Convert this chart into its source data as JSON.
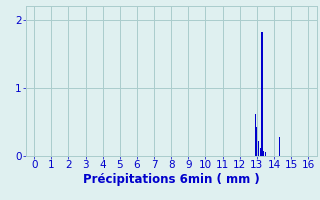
{
  "xlabel": "Précipitations 6min ( mm )",
  "xlim": [
    -0.5,
    16.5
  ],
  "ylim": [
    0,
    2.2
  ],
  "yticks": [
    0,
    1,
    2
  ],
  "xticks": [
    0,
    1,
    2,
    3,
    4,
    5,
    6,
    7,
    8,
    9,
    10,
    11,
    12,
    13,
    14,
    15,
    16
  ],
  "bar_positions": [
    12.9,
    13.0,
    13.1,
    13.2,
    13.3,
    13.4,
    13.5,
    14.3
  ],
  "bar_heights": [
    0.62,
    0.42,
    0.22,
    0.12,
    1.82,
    0.08,
    0.06,
    0.28
  ],
  "bar_color": "#0000cc",
  "bg_color": "#dff0f0",
  "grid_color": "#aacccc",
  "text_color": "#0000cc",
  "bar_width": 0.07,
  "tick_fontsize": 7.5,
  "xlabel_fontsize": 8.5
}
